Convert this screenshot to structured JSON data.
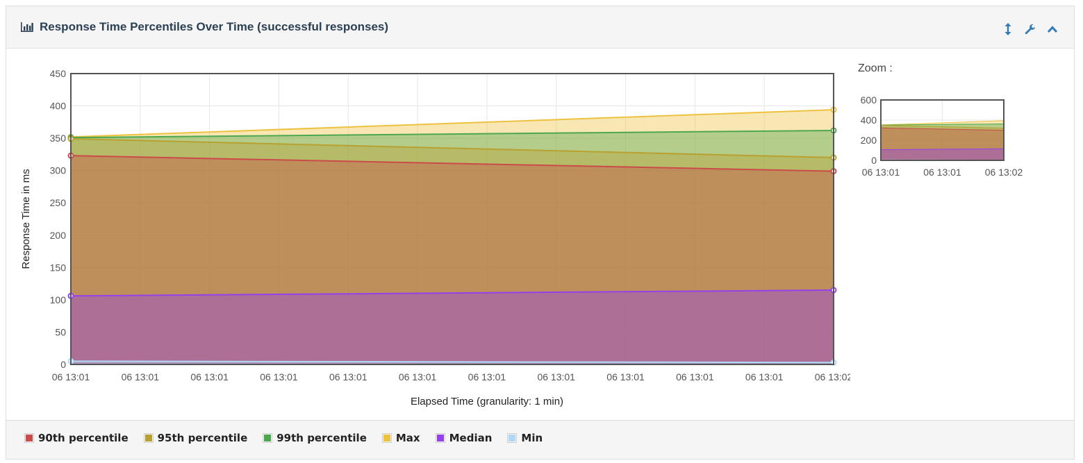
{
  "panel": {
    "title": "Response Time Percentiles Over Time (successful responses)",
    "icons": [
      "bar-chart-icon",
      "resize-vertical-icon",
      "wrench-icon",
      "chevron-up-icon"
    ]
  },
  "zoom": {
    "label": "Zoom :"
  },
  "legend": [
    {
      "label": "90th percentile",
      "color": "#cb4b4b"
    },
    {
      "label": "95th percentile",
      "color": "#b8a031"
    },
    {
      "label": "99th percentile",
      "color": "#4da74d"
    },
    {
      "label": "Max",
      "color": "#edc240"
    },
    {
      "label": "Median",
      "color": "#9440ed"
    },
    {
      "label": "Min",
      "color": "#afd8f8"
    }
  ],
  "chart_data": {
    "type": "area",
    "xlabel": "Elapsed Time (granularity: 1 min)",
    "ylabel": "Response Time in ms",
    "ylim": [
      0,
      450
    ],
    "yticks": [
      0,
      50,
      100,
      150,
      200,
      250,
      300,
      350,
      400,
      450
    ],
    "xtick_labels": [
      "06 13:01",
      "06 13:01",
      "06 13:01",
      "06 13:01",
      "06 13:01",
      "06 13:01",
      "06 13:01",
      "06 13:01",
      "06 13:01",
      "06 13:01",
      "06 13:01",
      "06 13:02"
    ],
    "x": [
      "06 13:01",
      "06 13:02"
    ],
    "grid": true,
    "legend_position": "bottom",
    "series": [
      {
        "name": "90th percentile",
        "color": "#cb4b4b",
        "values": [
          323,
          299
        ]
      },
      {
        "name": "95th percentile",
        "color": "#b8a031",
        "values": [
          349,
          320
        ]
      },
      {
        "name": "99th percentile",
        "color": "#4da74d",
        "values": [
          351,
          362
        ]
      },
      {
        "name": "Max",
        "color": "#edc240",
        "values": [
          352,
          394
        ]
      },
      {
        "name": "Median",
        "color": "#9440ed",
        "values": [
          106,
          115
        ]
      },
      {
        "name": "Min",
        "color": "#afd8f8",
        "values": [
          5,
          3
        ]
      }
    ],
    "overview": {
      "ylim": [
        0,
        600
      ],
      "yticks": [
        0,
        200,
        400,
        600
      ],
      "xtick_labels": [
        "06 13:01",
        "06 13:01",
        "06 13:02"
      ]
    }
  }
}
